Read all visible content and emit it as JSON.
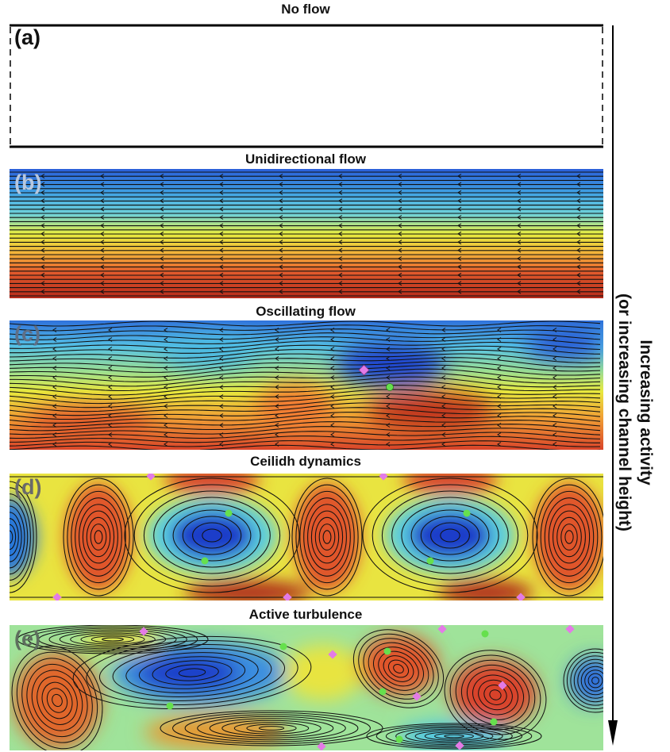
{
  "panels": [
    {
      "label": "(a)",
      "title": "No flow"
    },
    {
      "label": "(b)",
      "title": "Unidirectional flow"
    },
    {
      "label": "(c)",
      "title": "Oscillating flow"
    },
    {
      "label": "(d)",
      "title": "Ceilidh dynamics"
    },
    {
      "label": "(e)",
      "title": "Active turbulence"
    }
  ],
  "side_annotation": {
    "line1": "Increasing activity",
    "line2": "(or increasing channel height)"
  },
  "colors": {
    "cold": "#1d4fd6",
    "cyan": "#4cc4e6",
    "yellow": "#e9ea3c",
    "warm": "#e6522b",
    "dark": "#7a1a10",
    "defect_plus": "#66e04d",
    "defect_minus": "#e37be6"
  }
}
